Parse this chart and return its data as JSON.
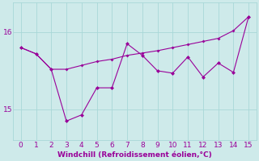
{
  "xlabel": "Windchill (Refroidissement éolien,°C)",
  "background_color": "#ceeaea",
  "line_color": "#990099",
  "x_data": [
    0,
    1,
    2,
    3,
    4,
    5,
    6,
    7,
    8,
    9,
    10,
    11,
    12,
    13,
    14,
    15
  ],
  "y_jagged": [
    15.8,
    15.72,
    15.52,
    14.85,
    14.93,
    15.28,
    15.28,
    15.85,
    15.7,
    15.5,
    15.47,
    15.68,
    15.42,
    15.6,
    15.48,
    16.2
  ],
  "y_trend": [
    15.8,
    15.72,
    15.52,
    15.52,
    15.57,
    15.62,
    15.65,
    15.7,
    15.73,
    15.76,
    15.8,
    15.84,
    15.88,
    15.92,
    16.02,
    16.2
  ],
  "xlim": [
    -0.5,
    15.5
  ],
  "ylim": [
    14.6,
    16.38
  ],
  "yticks": [
    15.0,
    16.0
  ],
  "ytick_labels": [
    "15",
    "16"
  ],
  "xticks": [
    0,
    1,
    2,
    3,
    4,
    5,
    6,
    7,
    8,
    9,
    10,
    11,
    12,
    13,
    14,
    15
  ],
  "grid_color": "#a8d8d8",
  "tick_color": "#990099",
  "label_color": "#990099",
  "figsize": [
    3.2,
    2.0
  ],
  "dpi": 100
}
